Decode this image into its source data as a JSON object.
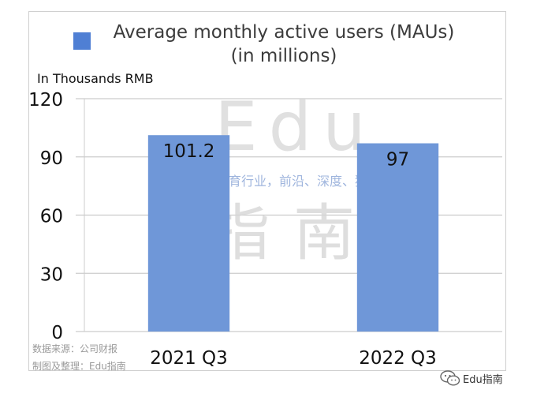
{
  "chart_data": {
    "type": "bar",
    "categories": [
      "2021 Q3",
      "2022 Q3"
    ],
    "series": [
      {
        "name": "Average monthly active users (MAUs) (in millions)",
        "values": [
          101.2,
          97
        ]
      }
    ],
    "data_labels": [
      "101.2",
      "97"
    ],
    "title": "",
    "xlabel": "",
    "ylabel": "In Thousands RMB",
    "ylim": [
      0,
      120
    ],
    "yticks": [
      0,
      30,
      60,
      90,
      120
    ],
    "grid": true,
    "legend_position": "top",
    "colors": {
      "bar": "#6f97d8",
      "legend": "#4f7fd4",
      "grid": "#cccccc"
    }
  },
  "legend": {
    "line1": "Average monthly active users (MAUs)",
    "line2": "(in millions)"
  },
  "footnotes": {
    "source": "数据来源：公司财报",
    "made_by": "制图及整理：Edu指南"
  },
  "watermark": {
    "big_latin": "Edu",
    "tagline": "教育行业，前沿、深度、独家",
    "big_cn": "指南",
    "brand": "Edu指南"
  }
}
